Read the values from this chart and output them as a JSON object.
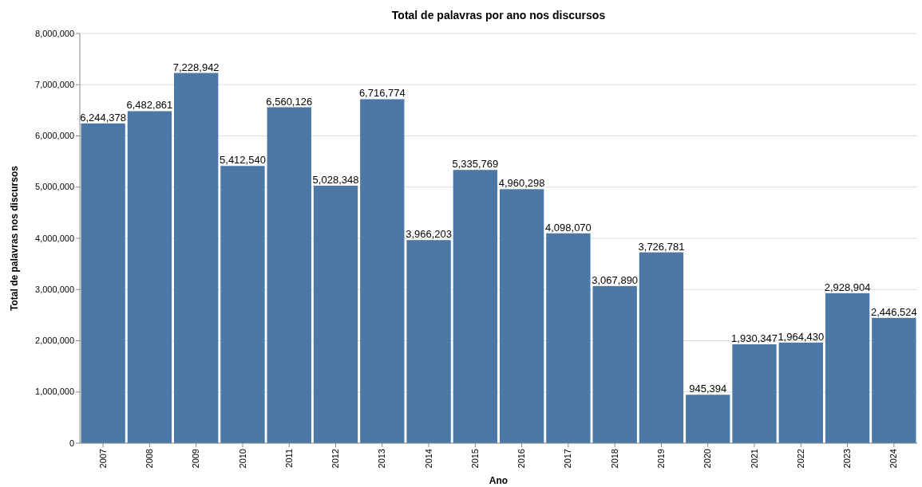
{
  "chart_data": {
    "type": "bar",
    "title": "Total de palavras por ano nos discursos",
    "xlabel": "Ano",
    "ylabel": "Total de palavras nos discursos",
    "categories": [
      "2007",
      "2008",
      "2009",
      "2010",
      "2011",
      "2012",
      "2013",
      "2014",
      "2015",
      "2016",
      "2017",
      "2018",
      "2019",
      "2020",
      "2021",
      "2022",
      "2023",
      "2024"
    ],
    "values": [
      6244378,
      6482861,
      7228942,
      5412540,
      6560126,
      5028348,
      6716774,
      3966203,
      5335769,
      4960298,
      4098070,
      3067890,
      3726781,
      945394,
      1930347,
      1964430,
      2928904,
      2446524
    ],
    "color": "#4c78a8",
    "ylim": [
      0,
      8000000
    ],
    "yticks": [
      {
        "value": 0,
        "label": "0"
      },
      {
        "value": 1000000,
        "label": "1,000,000"
      },
      {
        "value": 2000000,
        "label": "2,000,000"
      },
      {
        "value": 3000000,
        "label": "3,000,000"
      },
      {
        "value": 4000000,
        "label": "4,000,000"
      },
      {
        "value": 5000000,
        "label": "5,000,000"
      },
      {
        "value": 6000000,
        "label": "6,000,000"
      },
      {
        "value": 7000000,
        "label": "7,000,000"
      },
      {
        "value": 8000000,
        "label": "8,000,000"
      }
    ],
    "value_labels": [
      "6,244,378",
      "6,482,861",
      "7,228,942",
      "5,412,540",
      "6,560,126",
      "5,028,348",
      "6,716,774",
      "3,966,203",
      "5,335,769",
      "4,960,298",
      "4,098,070",
      "3,067,890",
      "3,726,781",
      "945,394",
      "1,930,347",
      "1,964,430",
      "2,928,904",
      "2,446,524"
    ],
    "grid": "y"
  }
}
